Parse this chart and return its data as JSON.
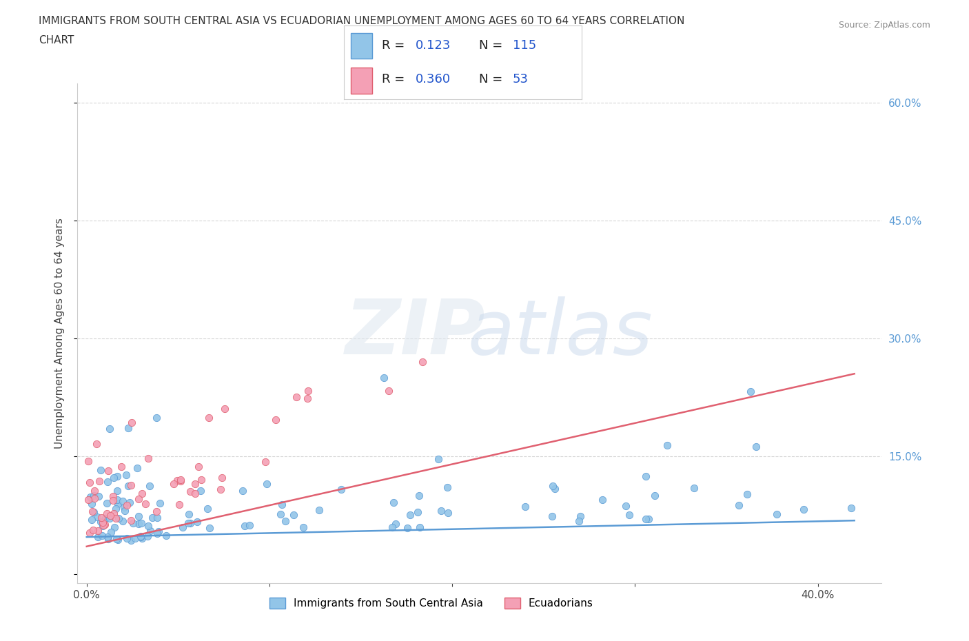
{
  "title_line1": "IMMIGRANTS FROM SOUTH CENTRAL ASIA VS ECUADORIAN UNEMPLOYMENT AMONG AGES 60 TO 64 YEARS CORRELATION",
  "title_line2": "CHART",
  "source": "Source: ZipAtlas.com",
  "ylabel": "Unemployment Among Ages 60 to 64 years",
  "blue_color": "#92c5e8",
  "pink_color": "#f4a0b5",
  "blue_line_color": "#5b9bd5",
  "pink_line_color": "#e06070",
  "legend_text_color": "#2255cc",
  "r_blue": "0.123",
  "n_blue": "115",
  "r_pink": "0.360",
  "n_pink": "53",
  "background_color": "#ffffff",
  "grid_color": "#cccccc",
  "label_blue": "Immigrants from South Central Asia",
  "label_pink": "Ecuadorians"
}
